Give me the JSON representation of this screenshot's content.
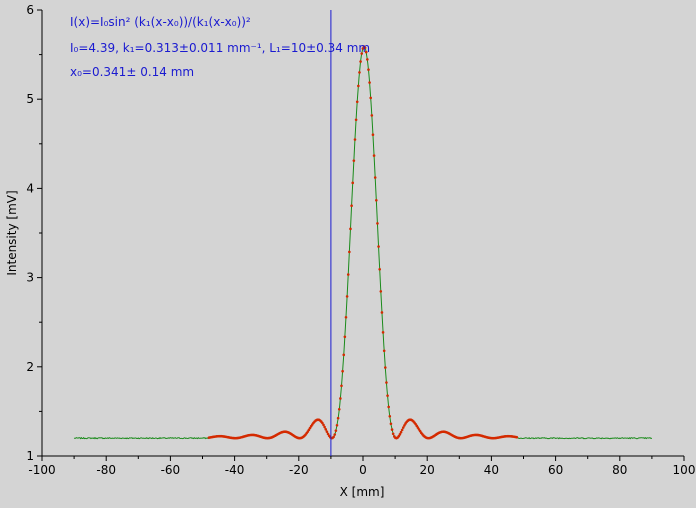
{
  "chart_data": {
    "type": "scatter",
    "xlabel": "X [mm]",
    "ylabel": "Intensity [mV]",
    "xlim": [
      -100,
      100
    ],
    "ylim": [
      1,
      6
    ],
    "grid": false,
    "x_ticks": [
      "-100",
      "-80",
      "-60",
      "-40",
      "-20",
      "0",
      "20",
      "40",
      "60",
      "80",
      "100"
    ],
    "y_ticks": [
      "1",
      "2",
      "3",
      "4",
      "5",
      "6"
    ],
    "cursor_x": -10,
    "annotation": {
      "line1": "I(x)=I₀sin² (k₁(x-x₀))/(k₁(x-x₀))²",
      "line2": "I₀=4.39,  k₁=0.313±0.011 mm⁻¹,   L₁=10±0.34 mm",
      "line3": "x₀=0.341±  0.14 mm"
    },
    "colors": {
      "measured": "#1a8a1a",
      "fit": "#d42a00",
      "cursor": "#1a1ad0",
      "annotation": "#1a1ad0"
    },
    "series": [
      {
        "kind": "measured",
        "x_range": [
          -90,
          90
        ],
        "baseline": 1.2,
        "description_points": [
          [
            -90,
            1.2
          ],
          [
            -50,
            1.2
          ],
          [
            -40,
            1.22
          ],
          [
            -30,
            1.23
          ],
          [
            -20,
            1.26
          ],
          [
            -12,
            1.4
          ],
          [
            -10,
            1.2
          ],
          [
            0,
            5.6
          ],
          [
            10,
            1.2
          ],
          [
            12,
            1.4
          ],
          [
            20,
            1.26
          ],
          [
            30,
            1.23
          ],
          [
            40,
            1.22
          ],
          [
            50,
            1.2
          ],
          [
            90,
            1.2
          ]
        ]
      },
      {
        "kind": "fit",
        "x_range": [
          -48,
          48
        ],
        "I0": 4.39,
        "k1": 0.313,
        "x0": 0.341,
        "offset": 1.2
      }
    ]
  }
}
